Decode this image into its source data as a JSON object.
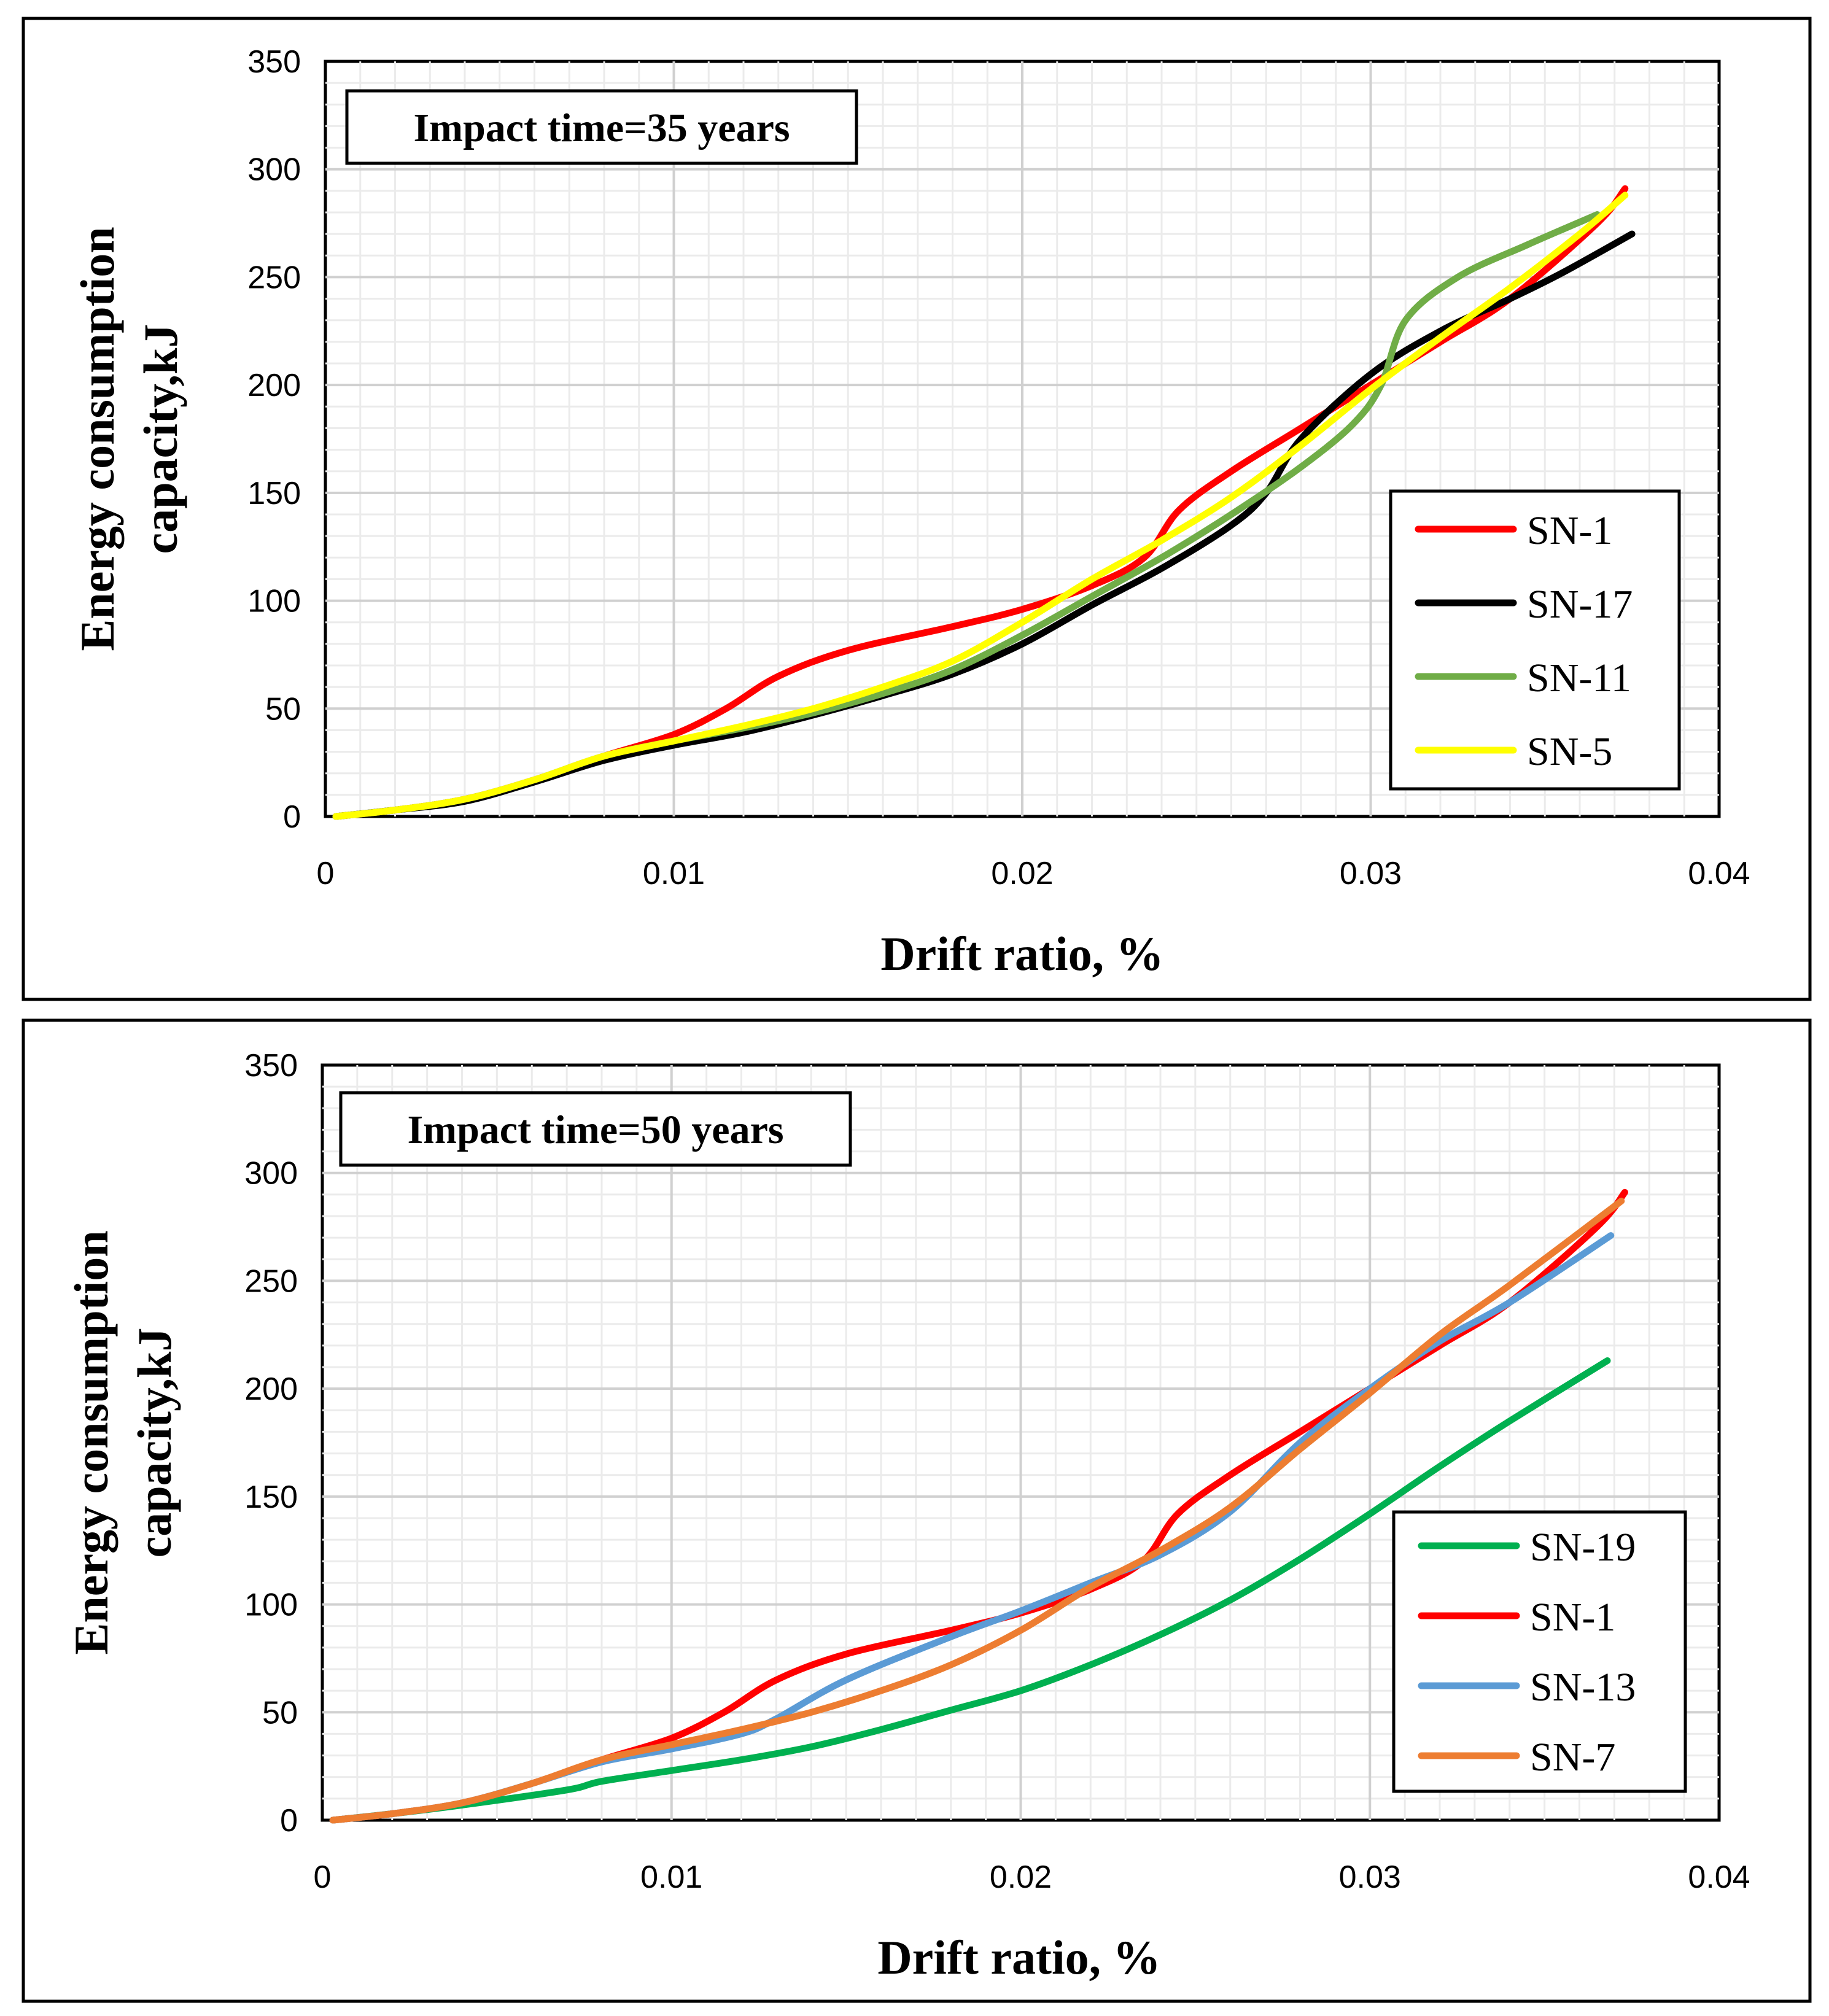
{
  "chart_data": [
    {
      "type": "line",
      "annotation": "Impact time=35 years",
      "xlabel": "Drift ratio, %",
      "ylabel_line1": "Energy consumption",
      "ylabel_line2": "capacity,kJ",
      "xlim": [
        0,
        0.04
      ],
      "ylim": [
        0,
        350
      ],
      "xticks": [
        "0",
        "0.01",
        "0.02",
        "0.03",
        "0.04"
      ],
      "yticks": [
        "0",
        "50",
        "100",
        "150",
        "200",
        "250",
        "300",
        "350"
      ],
      "legend_position": "lower-right",
      "series": [
        {
          "name": "SN-1",
          "color": "#ff0000",
          "x": [
            0.0003,
            0.002,
            0.004,
            0.006,
            0.008,
            0.01,
            0.0115,
            0.013,
            0.015,
            0.018,
            0.02,
            0.022,
            0.0235,
            0.0245,
            0.026,
            0.028,
            0.03,
            0.032,
            0.034,
            0.0365,
            0.0373
          ],
          "y": [
            0,
            3,
            8,
            17,
            28,
            38,
            50,
            65,
            77,
            88,
            96,
            107,
            120,
            142,
            160,
            180,
            200,
            220,
            240,
            275,
            291
          ]
        },
        {
          "name": "SN-17",
          "color": "#000000",
          "x": [
            0.0003,
            0.002,
            0.004,
            0.006,
            0.008,
            0.01,
            0.012,
            0.014,
            0.016,
            0.018,
            0.02,
            0.022,
            0.024,
            0.026,
            0.027,
            0.028,
            0.03,
            0.032,
            0.034,
            0.0355,
            0.0375
          ],
          "y": [
            0,
            3,
            7,
            16,
            26,
            33,
            39,
            47,
            56,
            66,
            80,
            98,
            115,
            135,
            150,
            175,
            205,
            225,
            240,
            252,
            270
          ]
        },
        {
          "name": "SN-11",
          "color": "#70ad47",
          "x": [
            0.0003,
            0.002,
            0.004,
            0.006,
            0.008,
            0.01,
            0.012,
            0.014,
            0.016,
            0.018,
            0.02,
            0.022,
            0.024,
            0.026,
            0.028,
            0.0295,
            0.0303,
            0.031,
            0.0325,
            0.0345,
            0.0365
          ],
          "y": [
            0,
            3,
            8,
            17,
            28,
            35,
            41,
            48,
            57,
            68,
            84,
            102,
            120,
            140,
            162,
            182,
            200,
            230,
            250,
            265,
            279
          ]
        },
        {
          "name": "SN-5",
          "color": "#ffff00",
          "x": [
            0.0003,
            0.002,
            0.004,
            0.006,
            0.008,
            0.01,
            0.012,
            0.014,
            0.016,
            0.018,
            0.02,
            0.022,
            0.024,
            0.026,
            0.028,
            0.03,
            0.032,
            0.034,
            0.036,
            0.0373
          ],
          "y": [
            0,
            3,
            8,
            17,
            28,
            35,
            42,
            50,
            60,
            72,
            90,
            110,
            128,
            148,
            172,
            198,
            222,
            245,
            270,
            288
          ]
        }
      ]
    },
    {
      "type": "line",
      "annotation": "Impact time=50 years",
      "xlabel": "Drift ratio, %",
      "ylabel_line1": "Energy consumption",
      "ylabel_line2": "capacity,kJ",
      "xlim": [
        0,
        0.04
      ],
      "ylim": [
        0,
        350
      ],
      "xticks": [
        "0",
        "0.01",
        "0.02",
        "0.03",
        "0.04"
      ],
      "yticks": [
        "0",
        "50",
        "100",
        "150",
        "200",
        "250",
        "300",
        "350"
      ],
      "legend_position": "lower-right",
      "series": [
        {
          "name": "SN-19",
          "color": "#00b050",
          "x": [
            0.0003,
            0.002,
            0.004,
            0.007,
            0.008,
            0.01,
            0.012,
            0.014,
            0.016,
            0.018,
            0.02,
            0.022,
            0.024,
            0.026,
            0.028,
            0.03,
            0.032,
            0.034,
            0.0368
          ],
          "y": [
            0,
            3,
            7,
            14,
            18,
            23,
            28,
            34,
            42,
            51,
            60,
            72,
            86,
            102,
            121,
            142,
            164,
            185,
            213
          ]
        },
        {
          "name": "SN-1",
          "color": "#ff0000",
          "x": [
            0.0003,
            0.002,
            0.004,
            0.006,
            0.008,
            0.01,
            0.0115,
            0.013,
            0.015,
            0.018,
            0.02,
            0.022,
            0.0235,
            0.0245,
            0.026,
            0.028,
            0.03,
            0.032,
            0.034,
            0.0365,
            0.0373
          ],
          "y": [
            0,
            3,
            8,
            17,
            28,
            38,
            50,
            65,
            77,
            88,
            96,
            107,
            120,
            142,
            160,
            180,
            200,
            220,
            240,
            275,
            291
          ]
        },
        {
          "name": "SN-13",
          "color": "#5b9bd5",
          "x": [
            0.0003,
            0.002,
            0.004,
            0.006,
            0.008,
            0.01,
            0.012,
            0.013,
            0.015,
            0.018,
            0.02,
            0.022,
            0.024,
            0.026,
            0.028,
            0.03,
            0.032,
            0.034,
            0.0369
          ],
          "y": [
            0,
            3,
            8,
            17,
            27,
            33,
            40,
            47,
            65,
            85,
            97,
            110,
            123,
            143,
            175,
            200,
            222,
            240,
            271
          ]
        },
        {
          "name": "SN-7",
          "color": "#ed7d31",
          "x": [
            0.0003,
            0.002,
            0.004,
            0.006,
            0.008,
            0.01,
            0.012,
            0.014,
            0.016,
            0.018,
            0.02,
            0.022,
            0.024,
            0.026,
            0.028,
            0.03,
            0.032,
            0.034,
            0.0372
          ],
          "y": [
            0,
            3,
            8,
            17,
            28,
            35,
            42,
            50,
            60,
            72,
            88,
            108,
            125,
            145,
            172,
            198,
            225,
            248,
            287
          ]
        }
      ]
    }
  ]
}
